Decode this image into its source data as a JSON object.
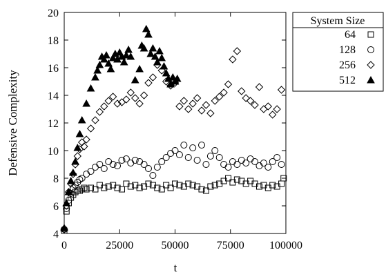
{
  "chart_data": {
    "type": "scatter",
    "title": "",
    "xlabel": "t",
    "ylabel": "Defensive Complexity",
    "xlim": [
      0,
      100000
    ],
    "ylim": [
      4,
      20
    ],
    "xticks": [
      0,
      25000,
      50000,
      75000,
      100000
    ],
    "xtick_labels": [
      "0",
      "25000",
      "50000",
      "75000",
      "100000"
    ],
    "yticks": [
      4,
      6,
      8,
      10,
      12,
      14,
      16,
      18,
      20
    ],
    "ytick_labels": [
      "4",
      "6",
      "8",
      "10",
      "12",
      "14",
      "16",
      "18",
      "20"
    ],
    "grid": false,
    "legend": {
      "title": "System Size",
      "position": "outside-right-top"
    },
    "series": [
      {
        "name": "64",
        "marker": "square",
        "x": [
          0,
          1000,
          2000,
          3000,
          4000,
          5000,
          6000,
          7000,
          8000,
          9000,
          10000,
          12000,
          14000,
          16000,
          18000,
          20000,
          22000,
          24000,
          26000,
          28000,
          30000,
          32000,
          34000,
          36000,
          38000,
          40000,
          42000,
          44000,
          46000,
          48000,
          50000,
          52000,
          54000,
          56000,
          58000,
          60000,
          62000,
          64000,
          66000,
          68000,
          70000,
          72000,
          74000,
          76000,
          78000,
          80000,
          82000,
          84000,
          86000,
          88000,
          90000,
          92000,
          94000,
          96000,
          98000,
          99000
        ],
        "y": [
          4.2,
          5.6,
          6.2,
          6.6,
          6.8,
          7.0,
          7.1,
          7.1,
          7.2,
          7.3,
          7.2,
          7.3,
          7.2,
          7.5,
          7.3,
          7.4,
          7.5,
          7.3,
          7.2,
          7.6,
          7.4,
          7.5,
          7.3,
          7.4,
          7.6,
          7.5,
          7.3,
          7.2,
          7.5,
          7.3,
          7.6,
          7.5,
          7.4,
          7.6,
          7.5,
          7.4,
          7.2,
          7.1,
          7.4,
          7.5,
          7.6,
          7.8,
          8.0,
          7.7,
          7.9,
          7.8,
          7.6,
          7.8,
          7.6,
          7.4,
          7.5,
          7.3,
          7.5,
          7.4,
          7.6,
          8.0
        ]
      },
      {
        "name": "128",
        "marker": "circle",
        "x": [
          0,
          1000,
          2000,
          3000,
          4000,
          5000,
          6000,
          7000,
          8000,
          10000,
          12000,
          14000,
          16000,
          18000,
          20000,
          22000,
          24000,
          26000,
          28000,
          30000,
          32000,
          34000,
          36000,
          38000,
          40000,
          42000,
          44000,
          46000,
          48000,
          50000,
          52000,
          54000,
          56000,
          58000,
          60000,
          62000,
          64000,
          66000,
          68000,
          70000,
          72000,
          74000,
          76000,
          78000,
          80000,
          82000,
          84000,
          86000,
          88000,
          90000,
          92000,
          94000,
          96000,
          98000
        ],
        "y": [
          4.3,
          5.8,
          6.4,
          6.9,
          7.3,
          7.5,
          7.7,
          7.9,
          8.0,
          8.3,
          8.5,
          8.8,
          9.0,
          8.7,
          9.2,
          9.0,
          8.9,
          9.3,
          9.4,
          9.1,
          9.3,
          9.2,
          9.0,
          8.7,
          8.2,
          8.8,
          9.2,
          9.5,
          9.8,
          10.0,
          9.7,
          10.4,
          9.5,
          10.2,
          9.3,
          10.4,
          9.0,
          9.6,
          10.0,
          9.5,
          9.0,
          8.8,
          9.2,
          9.0,
          9.3,
          9.1,
          9.4,
          9.2,
          8.9,
          9.1,
          8.8,
          9.2,
          9.5,
          9.0
        ]
      },
      {
        "name": "256",
        "marker": "diamond",
        "x": [
          0,
          1000,
          2000,
          3000,
          4000,
          5000,
          6000,
          7000,
          8000,
          9000,
          10000,
          12000,
          14000,
          16000,
          18000,
          20000,
          22000,
          24000,
          26000,
          28000,
          30000,
          32000,
          34000,
          36000,
          38000,
          40000,
          42000,
          44000,
          46000,
          48000,
          50000,
          52000,
          54000,
          56000,
          58000,
          60000,
          62000,
          64000,
          66000,
          68000,
          70000,
          72000,
          74000,
          76000,
          78000,
          80000,
          82000,
          84000,
          86000,
          88000,
          90000,
          92000,
          94000,
          96000,
          98000
        ],
        "y": [
          4.3,
          6.0,
          7.0,
          7.6,
          8.3,
          9.0,
          9.6,
          10.1,
          10.6,
          10.3,
          10.8,
          11.6,
          12.2,
          12.8,
          13.2,
          13.6,
          13.9,
          13.4,
          13.5,
          13.7,
          14.2,
          13.8,
          13.4,
          14.0,
          14.9,
          15.3,
          16.2,
          15.8,
          15.0,
          14.7,
          14.9,
          13.2,
          13.6,
          13.0,
          13.4,
          13.8,
          12.9,
          13.3,
          12.7,
          13.6,
          13.9,
          14.2,
          14.8,
          16.6,
          17.2,
          14.3,
          13.8,
          13.6,
          13.3,
          14.6,
          13.0,
          13.2,
          12.6,
          13.0,
          14.4
        ]
      },
      {
        "name": "512",
        "marker": "triangle",
        "x": [
          0,
          1000,
          2000,
          3000,
          4000,
          5000,
          6000,
          7000,
          8000,
          10000,
          12000,
          14000,
          15000,
          16000,
          17000,
          18000,
          19000,
          20000,
          21000,
          22000,
          23000,
          24000,
          25000,
          26000,
          27000,
          28000,
          29000,
          30000,
          32000,
          34000,
          35000,
          36000,
          37000,
          38000,
          39000,
          40000,
          41000,
          42000,
          43000,
          44000,
          45000,
          46000,
          47000,
          48000,
          49000,
          50000,
          51000
        ],
        "y": [
          4.4,
          6.2,
          7.0,
          7.8,
          8.4,
          9.2,
          10.2,
          11.2,
          12.2,
          13.4,
          14.5,
          15.3,
          15.8,
          16.2,
          16.8,
          16.6,
          16.9,
          16.3,
          15.9,
          16.7,
          17.0,
          16.6,
          17.1,
          16.8,
          16.4,
          16.9,
          17.3,
          16.8,
          15.1,
          15.9,
          17.6,
          17.4,
          18.8,
          18.4,
          17.0,
          17.4,
          16.8,
          16.4,
          17.2,
          16.7,
          16.1,
          15.6,
          15.2,
          14.8,
          15.3,
          15.0,
          15.2
        ]
      }
    ]
  }
}
